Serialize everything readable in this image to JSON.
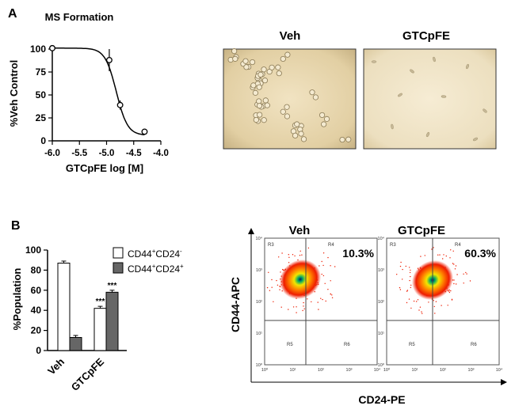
{
  "panels": {
    "a_letter": "A",
    "b_letter": "B"
  },
  "chart_data": [
    {
      "type": "line",
      "title": "MS Formation",
      "xlabel": "GTCpFE log [M]",
      "ylabel": "%Veh Control",
      "xlim": [
        -6.0,
        -4.0
      ],
      "ylim": [
        0,
        100
      ],
      "x_ticks": [
        "-6.0",
        "-5.5",
        "-5.0",
        "-4.5",
        "-4.0"
      ],
      "y_ticks": [
        "0",
        "25",
        "50",
        "75",
        "100"
      ],
      "points": [
        {
          "x": -6.0,
          "y": 101,
          "err": 2
        },
        {
          "x": -4.95,
          "y": 88,
          "err": 12
        },
        {
          "x": -4.75,
          "y": 39,
          "err": 5
        },
        {
          "x": -4.3,
          "y": 10,
          "err": 3
        }
      ]
    },
    {
      "type": "bar",
      "xlabel": "",
      "ylabel": "%Population",
      "ylim": [
        0,
        100
      ],
      "y_ticks": [
        "0",
        "20",
        "40",
        "60",
        "80",
        "100"
      ],
      "categories": [
        "Veh",
        "GTCpFE"
      ],
      "series": [
        {
          "name": "CD44+CD24-",
          "color": "#ffffff",
          "values": [
            87,
            42
          ],
          "errors": [
            2,
            2
          ]
        },
        {
          "name": "CD44+CD24+",
          "color": "#666666",
          "values": [
            13,
            58
          ],
          "errors": [
            2,
            2
          ]
        }
      ],
      "annotations": [
        "***",
        "***"
      ]
    },
    {
      "type": "scatter",
      "xlabel": "CD24-PE",
      "ylabel": "CD44-APC",
      "plots": [
        {
          "title": "Veh",
          "percent": "10.3%",
          "regions": [
            "R3",
            "R4",
            "R5",
            "R6"
          ]
        },
        {
          "title": "GTCpFE",
          "percent": "60.3%",
          "regions": [
            "R3",
            "R4",
            "R5",
            "R6"
          ]
        }
      ],
      "x_ticks": [
        "10⁰",
        "10¹",
        "10²",
        "10³",
        "10⁴"
      ],
      "y_ticks": [
        "10⁰",
        "10¹",
        "10²",
        "10³",
        "10⁴"
      ]
    }
  ],
  "images": {
    "left_title": "Veh",
    "right_title": "GTCpFE"
  },
  "legend": {
    "item1_base": "CD44",
    "item1_sup1": "+",
    "item1_mid": "CD24",
    "item1_sup2": "-",
    "item2_base": "CD44",
    "item2_sup1": "+",
    "item2_mid": "CD24",
    "item2_sup2": "+"
  }
}
